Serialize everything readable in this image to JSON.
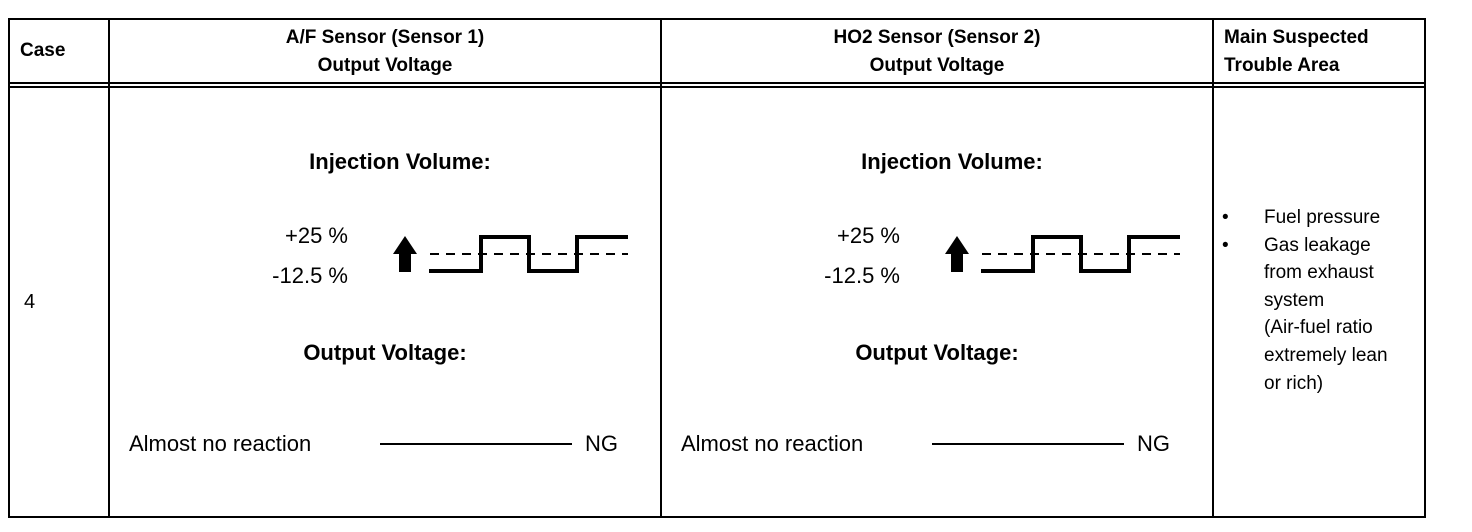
{
  "table": {
    "headers": {
      "case": "Case",
      "af_line1": "A/F Sensor (Sensor 1)",
      "af_line2": "Output Voltage",
      "ho2_line1": "HO2 Sensor (Sensor 2)",
      "ho2_line2": "Output Voltage",
      "area_line1": "Main Suspected",
      "area_line2": "Trouble Area"
    },
    "row": {
      "case": "4",
      "af": {
        "injection_title": "Injection Volume:",
        "plus": "+25 %",
        "minus": "-12.5 %",
        "output_title": "Output Voltage:",
        "reaction": "Almost no reaction",
        "result": "NG"
      },
      "ho2": {
        "injection_title": "Injection Volume:",
        "plus": "+25 %",
        "minus": "-12.5 %",
        "output_title": "Output Voltage:",
        "reaction": "Almost no reaction",
        "result": "NG"
      },
      "trouble_area": {
        "bullet": "•",
        "items": [
          {
            "lines": [
              "Fuel pressure"
            ]
          },
          {
            "lines": [
              "Gas leakage",
              "from exhaust",
              "system",
              "(Air-fuel ratio",
              "extremely lean",
              "or rich)"
            ]
          }
        ]
      }
    }
  }
}
